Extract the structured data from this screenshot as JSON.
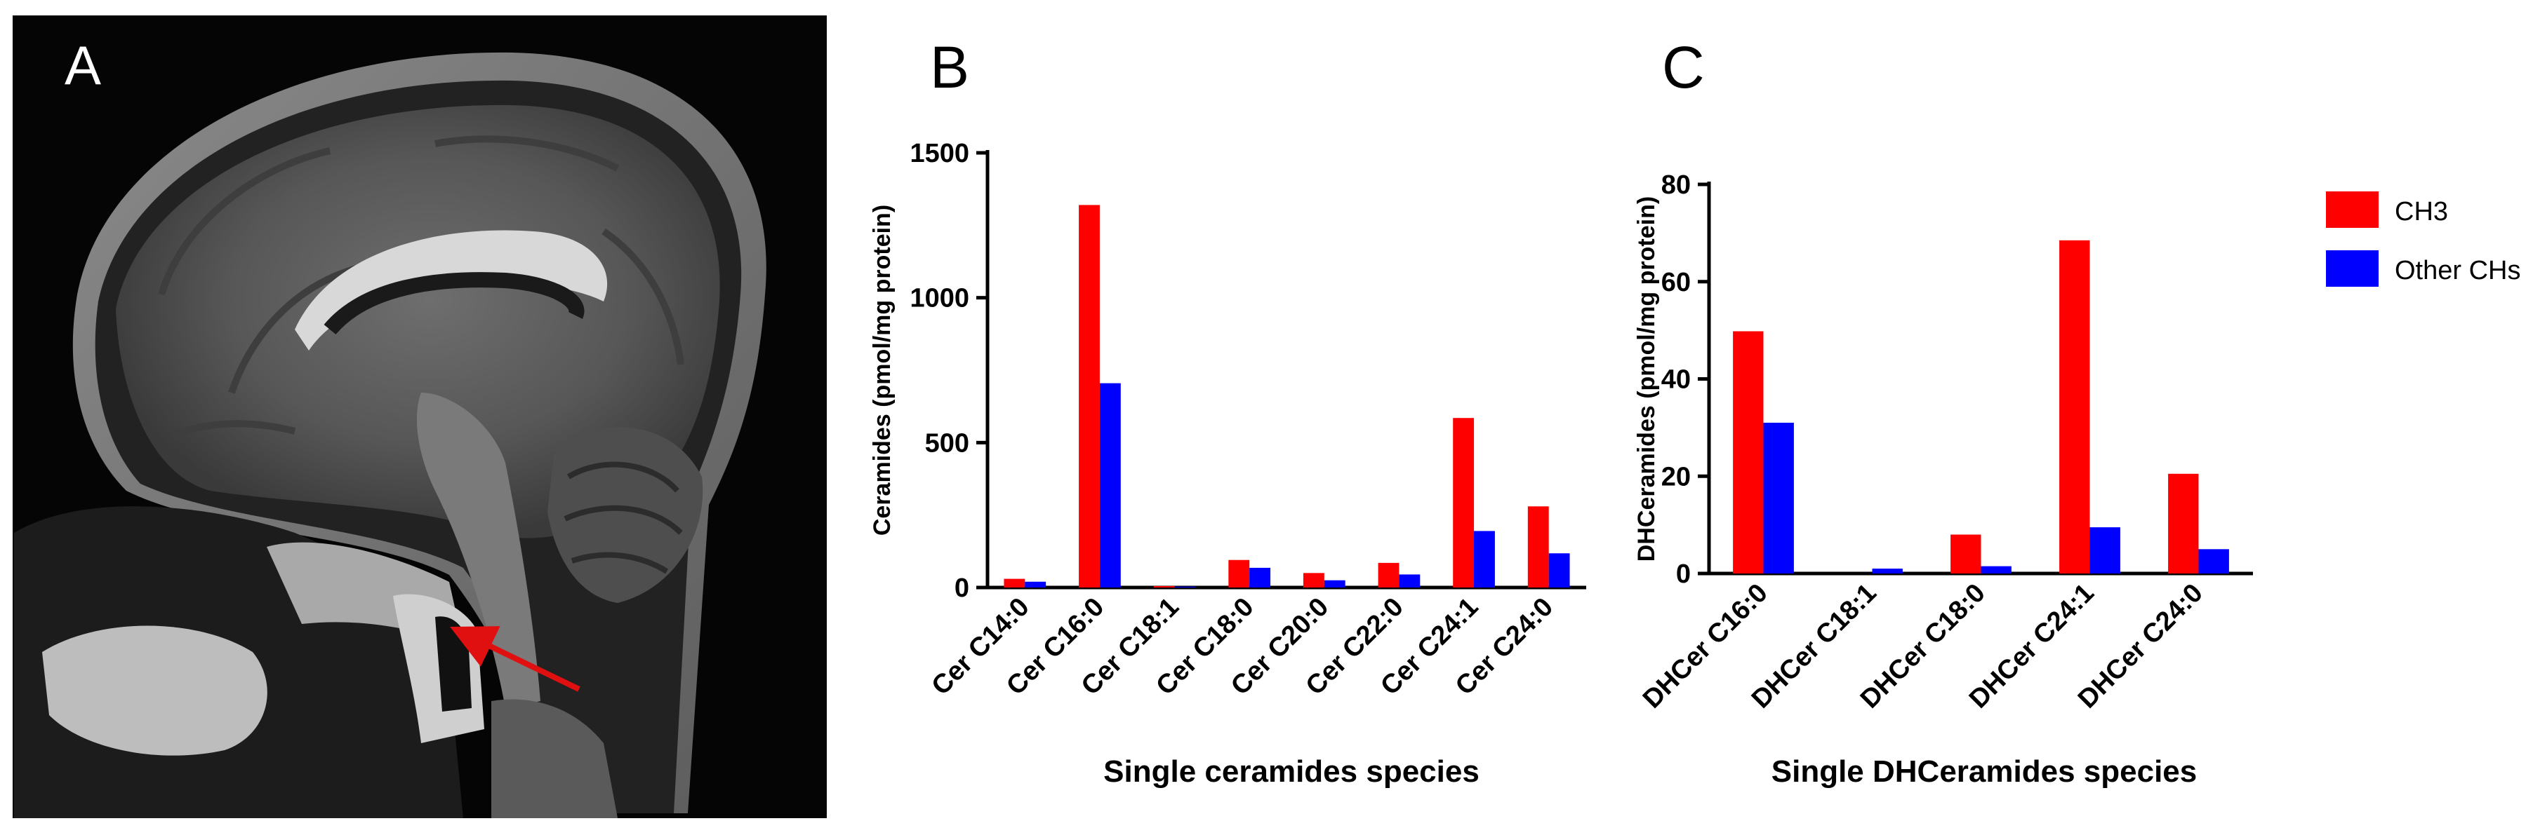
{
  "panels": {
    "a": {
      "letter": "A"
    },
    "b": {
      "letter": "B"
    },
    "c": {
      "letter": "C"
    }
  },
  "legend": {
    "position": "top-right",
    "entries": [
      {
        "label": "CH3",
        "color": "#ff0000"
      },
      {
        "label": "Other CHs",
        "color": "#0000ff"
      }
    ]
  },
  "chart_data": [
    {
      "type": "bar",
      "panel": "B",
      "title": "",
      "xlabel": "Single ceramides species",
      "ylabel": "Ceramides (pmol/mg protein)",
      "ylim": [
        0,
        1500
      ],
      "yticks": [
        0,
        500,
        1000,
        1500
      ],
      "categories": [
        "Cer C14:0",
        "Cer C16:0",
        "Cer C18:1",
        "Cer C18:0",
        "Cer C20:0",
        "Cer C22:0",
        "Cer C24:1",
        "Cer C24:0"
      ],
      "series": [
        {
          "name": "CH3",
          "color": "#ff0000",
          "values": [
            30,
            1320,
            5,
            95,
            50,
            85,
            585,
            280
          ]
        },
        {
          "name": "Other CHs",
          "color": "#0000ff",
          "values": [
            20,
            705,
            3,
            68,
            25,
            45,
            195,
            118
          ]
        }
      ],
      "grid": false
    },
    {
      "type": "bar",
      "panel": "C",
      "title": "",
      "xlabel": "Single DHCeramides species",
      "ylabel": "DHCeramides (pmol/mg protein)",
      "ylim": [
        0,
        80
      ],
      "yticks": [
        0,
        20,
        40,
        60,
        80
      ],
      "categories": [
        "DHCer C16:0",
        "DHCer C18:1",
        "DHCer C18:0",
        "DHCer C24:1",
        "DHCer C24:0"
      ],
      "series": [
        {
          "name": "CH3",
          "color": "#ff0000",
          "values": [
            49.8,
            0,
            8,
            68.5,
            20.5
          ]
        },
        {
          "name": "Other CHs",
          "color": "#0000ff",
          "values": [
            31,
            1,
            1.5,
            9.5,
            5
          ]
        }
      ],
      "grid": false
    }
  ]
}
